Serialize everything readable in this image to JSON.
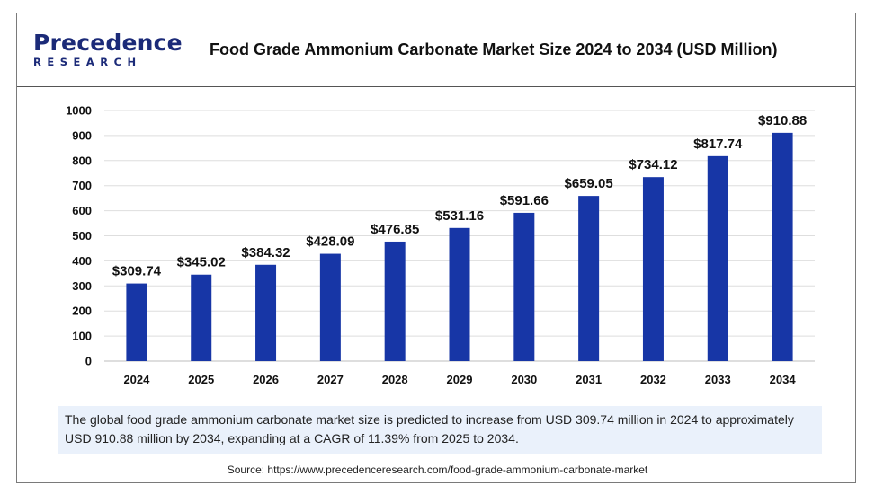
{
  "header": {
    "logo_top": "Precedence",
    "logo_bottom": "RESEARCH",
    "title": "Food Grade Ammonium Carbonate Market Size 2024 to 2034 (USD Million)"
  },
  "colors": {
    "bar": "#1736a6",
    "brand": "#1b2a78",
    "note_bg": "#eaf1fb"
  },
  "chart_data": {
    "type": "bar",
    "title": "Food Grade Ammonium Carbonate Market Size 2024 to 2034 (USD Million)",
    "categories": [
      "2024",
      "2025",
      "2026",
      "2027",
      "2028",
      "2029",
      "2030",
      "2031",
      "2032",
      "2033",
      "2034"
    ],
    "values": [
      309.74,
      345.02,
      384.32,
      428.09,
      476.85,
      531.16,
      591.66,
      659.05,
      734.12,
      817.74,
      910.88
    ],
    "value_labels": [
      "$309.74",
      "$345.02",
      "$384.32",
      "$428.09",
      "$476.85",
      "$531.16",
      "$591.66",
      "$659.05",
      "$734.12",
      "$817.74",
      "$910.88"
    ],
    "ylim": [
      0,
      1000
    ],
    "yticks": [
      "0",
      "100",
      "200",
      "300",
      "400",
      "500",
      "600",
      "700",
      "800",
      "900",
      "1000"
    ],
    "xlabel": "",
    "ylabel": "",
    "grid": true,
    "legend": "none"
  },
  "note": {
    "text": "The global food grade ammonium carbonate market size is predicted to increase from USD 309.74 million in 2024 to approximately USD 910.88 million by 2034, expanding at a CAGR of 11.39% from 2025 to 2034."
  },
  "source": {
    "text": "Source: https://www.precedenceresearch.com/food-grade-ammonium-carbonate-market"
  }
}
